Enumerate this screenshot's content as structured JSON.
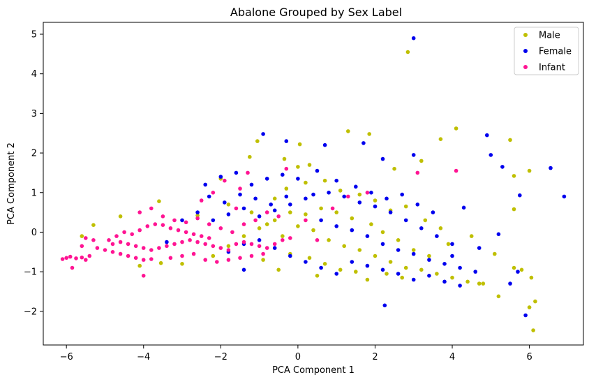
{
  "chart_data": {
    "type": "scatter",
    "title": "Abalone Grouped by Sex Label",
    "xlabel": "PCA Component 1",
    "ylabel": "PCA Component 2",
    "xlim": [
      -6.6,
      7.4
    ],
    "ylim": [
      -2.85,
      5.3
    ],
    "xticks": [
      -6,
      -4,
      -2,
      0,
      2,
      4,
      6
    ],
    "yticks": [
      -2,
      -1,
      0,
      1,
      2,
      3,
      4,
      5
    ],
    "grid": false,
    "legend_position": "top-right",
    "series": [
      {
        "name": "Male",
        "color": "#bfbf00",
        "points": [
          [
            2.85,
            4.55
          ],
          [
            4.1,
            2.62
          ],
          [
            5.5,
            2.33
          ],
          [
            1.3,
            2.55
          ],
          [
            1.85,
            2.48
          ],
          [
            3.7,
            2.35
          ],
          [
            0.05,
            2.22
          ],
          [
            -1.05,
            2.3
          ],
          [
            -1.25,
            1.9
          ],
          [
            -2.0,
            1.35
          ],
          [
            -0.35,
            1.85
          ],
          [
            0.3,
            1.7
          ],
          [
            0.0,
            1.65
          ],
          [
            2.5,
            1.6
          ],
          [
            3.2,
            1.8
          ],
          [
            5.6,
            1.42
          ],
          [
            6.0,
            1.55
          ],
          [
            5.6,
            0.58
          ],
          [
            -3.6,
            0.78
          ],
          [
            -4.6,
            0.4
          ],
          [
            -5.3,
            0.18
          ],
          [
            -5.6,
            -0.1
          ],
          [
            -3.55,
            -0.78
          ],
          [
            -4.1,
            -0.85
          ],
          [
            -2.6,
            0.42
          ],
          [
            -1.8,
            0.7
          ],
          [
            -1.2,
            0.5
          ],
          [
            -0.6,
            0.85
          ],
          [
            -0.3,
            1.1
          ],
          [
            0.2,
            1.25
          ],
          [
            0.7,
            1.3
          ],
          [
            1.1,
            1.05
          ],
          [
            1.6,
            0.95
          ],
          [
            2.0,
            0.8
          ],
          [
            2.4,
            0.55
          ],
          [
            2.8,
            0.65
          ],
          [
            3.3,
            0.3
          ],
          [
            3.7,
            0.1
          ],
          [
            -0.8,
            0.2
          ],
          [
            -0.4,
            -0.1
          ],
          [
            0.0,
            0.15
          ],
          [
            0.4,
            0.05
          ],
          [
            0.8,
            -0.2
          ],
          [
            1.2,
            -0.35
          ],
          [
            1.6,
            -0.45
          ],
          [
            2.0,
            -0.6
          ],
          [
            2.4,
            -0.75
          ],
          [
            2.8,
            -0.9
          ],
          [
            3.2,
            -0.95
          ],
          [
            3.6,
            -1.05
          ],
          [
            4.0,
            -1.15
          ],
          [
            4.4,
            -1.25
          ],
          [
            4.7,
            -1.3
          ],
          [
            -0.2,
            -0.55
          ],
          [
            0.3,
            -0.65
          ],
          [
            0.7,
            -0.8
          ],
          [
            1.1,
            -0.95
          ],
          [
            1.5,
            -1.0
          ],
          [
            1.8,
            -1.2
          ],
          [
            2.3,
            -1.05
          ],
          [
            2.7,
            -1.15
          ],
          [
            5.2,
            -1.62
          ],
          [
            5.8,
            -0.95
          ],
          [
            6.0,
            -1.9
          ],
          [
            6.15,
            -1.75
          ],
          [
            6.1,
            -2.48
          ],
          [
            6.05,
            -1.15
          ],
          [
            5.1,
            -0.55
          ],
          [
            4.5,
            -0.1
          ],
          [
            3.9,
            -0.3
          ],
          [
            3.4,
            -0.6
          ],
          [
            3.0,
            -0.45
          ],
          [
            2.6,
            -0.2
          ],
          [
            2.2,
            0.0
          ],
          [
            1.9,
            0.2
          ],
          [
            1.4,
            0.35
          ],
          [
            1.0,
            0.5
          ],
          [
            0.6,
            0.6
          ],
          [
            0.2,
            0.45
          ],
          [
            -0.2,
            0.5
          ],
          [
            -0.6,
            0.3
          ],
          [
            -1.0,
            0.1
          ],
          [
            -1.4,
            -0.1
          ],
          [
            -1.8,
            -0.35
          ],
          [
            -2.2,
            -0.6
          ],
          [
            -3.0,
            -0.8
          ],
          [
            -0.9,
            -0.7
          ],
          [
            -0.5,
            -0.95
          ],
          [
            0.5,
            -1.1
          ],
          [
            4.8,
            -1.3
          ],
          [
            5.6,
            -0.9
          ]
        ]
      },
      {
        "name": "Female",
        "color": "#0000ee",
        "points": [
          [
            3.0,
            4.9
          ],
          [
            -0.9,
            2.48
          ],
          [
            0.7,
            2.2
          ],
          [
            1.7,
            2.25
          ],
          [
            2.2,
            1.85
          ],
          [
            3.0,
            1.95
          ],
          [
            4.9,
            2.45
          ],
          [
            5.0,
            1.95
          ],
          [
            5.3,
            1.65
          ],
          [
            6.55,
            1.62
          ],
          [
            6.9,
            0.9
          ],
          [
            5.75,
            0.93
          ],
          [
            4.3,
            0.62
          ],
          [
            -2.4,
            1.2
          ],
          [
            -2.0,
            1.4
          ],
          [
            -1.6,
            1.5
          ],
          [
            -1.2,
            1.2
          ],
          [
            -0.8,
            1.35
          ],
          [
            -0.4,
            1.45
          ],
          [
            0.0,
            1.35
          ],
          [
            0.5,
            1.55
          ],
          [
            1.0,
            1.3
          ],
          [
            1.5,
            1.15
          ],
          [
            1.9,
            1.0
          ],
          [
            2.3,
            0.85
          ],
          [
            2.7,
            0.95
          ],
          [
            3.1,
            0.7
          ],
          [
            3.5,
            0.5
          ],
          [
            -2.6,
            0.5
          ],
          [
            -2.2,
            0.3
          ],
          [
            -1.8,
            0.45
          ],
          [
            -1.4,
            0.6
          ],
          [
            -1.0,
            0.4
          ],
          [
            -0.6,
            0.55
          ],
          [
            -0.2,
            0.7
          ],
          [
            0.2,
            0.85
          ],
          [
            0.6,
            0.3
          ],
          [
            1.0,
            0.15
          ],
          [
            1.4,
            0.05
          ],
          [
            1.8,
            -0.1
          ],
          [
            2.2,
            -0.3
          ],
          [
            2.6,
            -0.45
          ],
          [
            3.0,
            -0.55
          ],
          [
            3.4,
            -0.7
          ],
          [
            3.8,
            -0.8
          ],
          [
            4.2,
            -0.9
          ],
          [
            4.6,
            -1.0
          ],
          [
            -1.8,
            -0.5
          ],
          [
            -1.4,
            -0.3
          ],
          [
            -1.0,
            -0.2
          ],
          [
            -0.6,
            -0.4
          ],
          [
            -0.2,
            -0.6
          ],
          [
            0.2,
            -0.75
          ],
          [
            0.6,
            -0.9
          ],
          [
            1.0,
            -1.05
          ],
          [
            1.4,
            -0.75
          ],
          [
            1.8,
            -0.85
          ],
          [
            2.2,
            -0.95
          ],
          [
            2.6,
            -1.05
          ],
          [
            3.0,
            -1.2
          ],
          [
            3.4,
            -1.1
          ],
          [
            3.8,
            -1.25
          ],
          [
            4.2,
            -1.35
          ],
          [
            2.25,
            -1.85
          ],
          [
            5.5,
            -1.3
          ],
          [
            5.7,
            -1.0
          ],
          [
            5.2,
            -0.05
          ],
          [
            4.7,
            -0.4
          ],
          [
            4.0,
            -0.3
          ],
          [
            3.6,
            -0.1
          ],
          [
            3.2,
            0.1
          ],
          [
            2.8,
            0.3
          ],
          [
            2.4,
            0.5
          ],
          [
            2.0,
            0.65
          ],
          [
            1.6,
            0.75
          ],
          [
            1.2,
            0.9
          ],
          [
            0.8,
            1.0
          ],
          [
            0.4,
            0.95
          ],
          [
            -0.3,
            0.9
          ],
          [
            -0.7,
            0.7
          ],
          [
            -1.1,
            0.85
          ],
          [
            -1.5,
            0.95
          ],
          [
            -1.9,
            0.75
          ],
          [
            -2.3,
            0.9
          ],
          [
            -3.0,
            0.3
          ],
          [
            -3.4,
            -0.25
          ],
          [
            -1.4,
            -0.95
          ],
          [
            -0.3,
            2.3
          ],
          [
            4.0,
            -0.6
          ],
          [
            5.9,
            -2.1
          ]
        ]
      },
      {
        "name": "Infant",
        "color": "#ff1493",
        "points": [
          [
            -6.1,
            -0.68
          ],
          [
            -6.0,
            -0.65
          ],
          [
            -5.9,
            -0.62
          ],
          [
            -5.85,
            -0.9
          ],
          [
            -5.75,
            -0.66
          ],
          [
            -5.6,
            -0.64
          ],
          [
            -5.5,
            -0.7
          ],
          [
            -5.4,
            -0.6
          ],
          [
            -5.6,
            -0.35
          ],
          [
            -5.5,
            -0.15
          ],
          [
            -5.3,
            -0.2
          ],
          [
            -5.2,
            -0.4
          ],
          [
            -5.0,
            -0.45
          ],
          [
            -4.8,
            -0.5
          ],
          [
            -4.6,
            -0.55
          ],
          [
            -4.4,
            -0.6
          ],
          [
            -4.2,
            -0.65
          ],
          [
            -4.0,
            -0.7
          ],
          [
            -3.8,
            -0.68
          ],
          [
            -4.0,
            -1.1
          ],
          [
            -4.9,
            -0.2
          ],
          [
            -4.7,
            -0.1
          ],
          [
            -4.5,
            0.0
          ],
          [
            -4.3,
            -0.05
          ],
          [
            -4.1,
            0.05
          ],
          [
            -3.9,
            0.15
          ],
          [
            -3.7,
            0.2
          ],
          [
            -3.5,
            0.18
          ],
          [
            -3.3,
            0.1
          ],
          [
            -3.1,
            0.05
          ],
          [
            -2.9,
            0.0
          ],
          [
            -2.7,
            -0.05
          ],
          [
            -2.5,
            -0.1
          ],
          [
            -2.3,
            -0.15
          ],
          [
            -4.8,
            -0.3
          ],
          [
            -4.6,
            -0.25
          ],
          [
            -4.4,
            -0.3
          ],
          [
            -4.2,
            -0.35
          ],
          [
            -4.0,
            -0.4
          ],
          [
            -3.8,
            -0.45
          ],
          [
            -3.6,
            -0.4
          ],
          [
            -3.4,
            -0.35
          ],
          [
            -3.2,
            -0.3
          ],
          [
            -3.0,
            -0.25
          ],
          [
            -2.8,
            -0.2
          ],
          [
            -2.6,
            -0.25
          ],
          [
            -2.4,
            -0.3
          ],
          [
            -2.2,
            -0.35
          ],
          [
            -2.0,
            -0.4
          ],
          [
            -1.8,
            -0.45
          ],
          [
            -1.6,
            -0.3
          ],
          [
            -1.4,
            -0.25
          ],
          [
            -1.2,
            -0.3
          ],
          [
            -1.0,
            -0.35
          ],
          [
            -0.8,
            -0.4
          ],
          [
            -0.6,
            -0.3
          ],
          [
            -0.4,
            -0.2
          ],
          [
            -0.2,
            -0.15
          ],
          [
            -4.1,
            0.5
          ],
          [
            -3.8,
            0.6
          ],
          [
            -3.5,
            0.4
          ],
          [
            -3.2,
            0.3
          ],
          [
            -2.9,
            0.25
          ],
          [
            -2.6,
            0.35
          ],
          [
            -2.3,
            0.2
          ],
          [
            -2.0,
            0.1
          ],
          [
            -1.7,
            0.0
          ],
          [
            -1.4,
            0.2
          ],
          [
            -1.1,
            0.3
          ],
          [
            -0.8,
            0.5
          ],
          [
            -0.5,
            0.4
          ],
          [
            -2.5,
            0.8
          ],
          [
            -2.2,
            1.0
          ],
          [
            -1.9,
            1.3
          ],
          [
            -1.5,
            1.1
          ],
          [
            -1.3,
            1.5
          ],
          [
            -1.6,
            0.6
          ],
          [
            -3.3,
            -0.65
          ],
          [
            -3.0,
            -0.6
          ],
          [
            -2.7,
            -0.55
          ],
          [
            -2.4,
            -0.7
          ],
          [
            -2.1,
            -0.75
          ],
          [
            -1.8,
            -0.7
          ],
          [
            -1.5,
            -0.65
          ],
          [
            -1.2,
            -0.6
          ],
          [
            -0.9,
            -0.55
          ],
          [
            0.5,
            -0.2
          ],
          [
            0.9,
            0.6
          ],
          [
            1.3,
            0.9
          ],
          [
            1.8,
            1.0
          ],
          [
            3.1,
            1.5
          ],
          [
            4.1,
            1.55
          ],
          [
            -0.3,
            1.6
          ],
          [
            0.2,
            0.3
          ]
        ]
      }
    ]
  }
}
